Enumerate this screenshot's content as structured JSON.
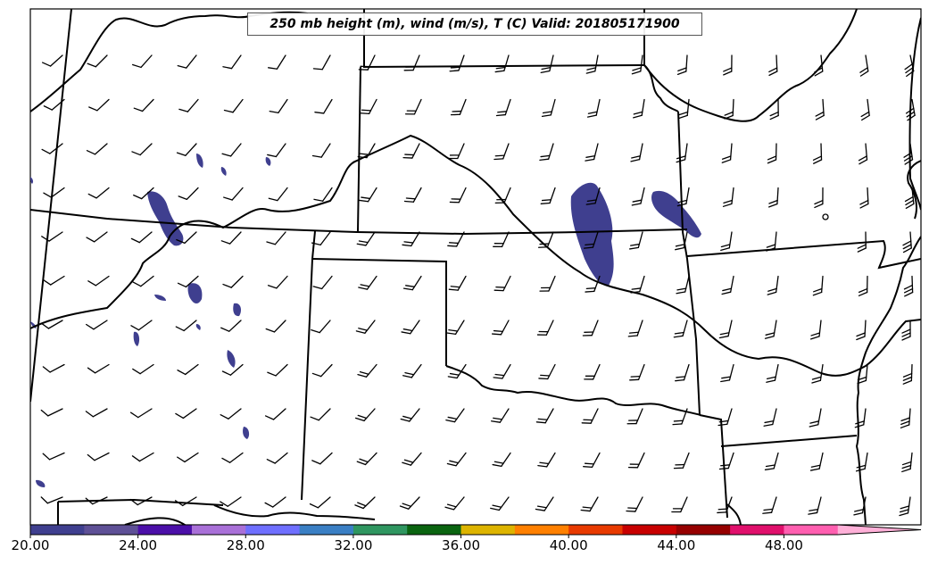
{
  "title": "250 mb height (m), wind (m/s), T (C) Valid: 201805171900",
  "colorbar": {
    "tick_labels": [
      "20.00",
      "24.00",
      "28.00",
      "32.00",
      "36.00",
      "40.00",
      "44.00",
      "48.00"
    ],
    "tick_values": [
      20,
      24,
      28,
      32,
      36,
      40,
      44,
      48
    ],
    "min": 20,
    "max": 51.5,
    "extend": "max",
    "bins": [
      {
        "from": 20,
        "to": 22,
        "color": "#3f3f8f"
      },
      {
        "from": 22,
        "to": 24,
        "color": "#5e5096"
      },
      {
        "from": 24,
        "to": 26,
        "color": "#4b0fa8"
      },
      {
        "from": 26,
        "to": 28,
        "color": "#a970d8"
      },
      {
        "from": 28,
        "to": 30,
        "color": "#6f6fff"
      },
      {
        "from": 30,
        "to": 32,
        "color": "#3a7fc4"
      },
      {
        "from": 32,
        "to": 34,
        "color": "#2f9660"
      },
      {
        "from": 34,
        "to": 36,
        "color": "#0a6410"
      },
      {
        "from": 36,
        "to": 38,
        "color": "#ddb400"
      },
      {
        "from": 38,
        "to": 40,
        "color": "#ff8000"
      },
      {
        "from": 40,
        "to": 42,
        "color": "#e83a00"
      },
      {
        "from": 42,
        "to": 44,
        "color": "#c80000"
      },
      {
        "from": 44,
        "to": 46,
        "color": "#960000"
      },
      {
        "from": 46,
        "to": 48,
        "color": "#e0106c"
      },
      {
        "from": 48,
        "to": 50,
        "color": "#ff5fb0"
      },
      {
        "from": 50,
        "to": 51.5,
        "color": "#ffb0d8"
      }
    ]
  },
  "shaded_field_color": "#3f3f8f",
  "line_color": "#000000"
}
